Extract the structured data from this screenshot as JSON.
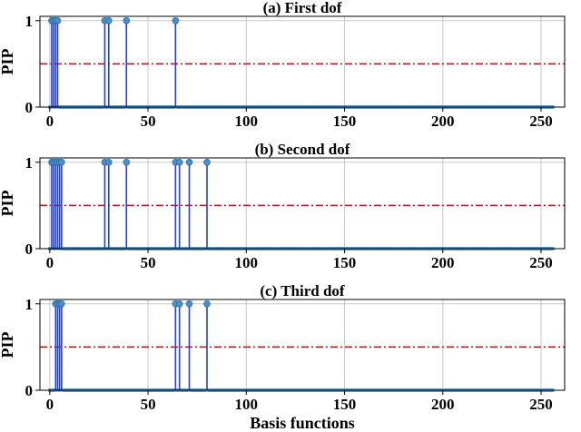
{
  "chart_data": [
    {
      "type": "stem",
      "title": "(a) First dof",
      "ylabel": "PIP",
      "xlabel": "",
      "xlim": [
        -5,
        262
      ],
      "ylim": [
        0,
        1.05
      ],
      "xticks": [
        0,
        50,
        100,
        150,
        200,
        250
      ],
      "yticks": [
        0,
        1
      ],
      "grid": true,
      "threshold": 0.5,
      "n_basis": 257,
      "nonzero_x": [
        1,
        2,
        3,
        4,
        28,
        30,
        39,
        64
      ],
      "nonzero_y": [
        1,
        1,
        1,
        1,
        1,
        1,
        1,
        1
      ]
    },
    {
      "type": "stem",
      "title": "(b) Second dof",
      "ylabel": "PIP",
      "xlabel": "",
      "xlim": [
        -5,
        262
      ],
      "ylim": [
        0,
        1.05
      ],
      "xticks": [
        0,
        50,
        100,
        150,
        200,
        250
      ],
      "yticks": [
        0,
        1
      ],
      "grid": true,
      "threshold": 0.5,
      "n_basis": 257,
      "nonzero_x": [
        1,
        2,
        3,
        4,
        5,
        6,
        28,
        30,
        39,
        64,
        66,
        71,
        80
      ],
      "nonzero_y": [
        1,
        1,
        1,
        1,
        1,
        1,
        1,
        1,
        1,
        1,
        1,
        1,
        1
      ]
    },
    {
      "type": "stem",
      "title": "(c) Third dof",
      "ylabel": "PIP",
      "xlabel": "Basis functions",
      "xlim": [
        -5,
        262
      ],
      "ylim": [
        0,
        1.05
      ],
      "xticks": [
        0,
        50,
        100,
        150,
        200,
        250
      ],
      "yticks": [
        0,
        1
      ],
      "grid": true,
      "threshold": 0.5,
      "n_basis": 257,
      "nonzero_x": [
        3,
        4,
        5,
        6,
        64,
        66,
        71,
        80
      ],
      "nonzero_y": [
        1,
        1,
        1,
        1,
        1,
        1,
        1,
        1
      ]
    }
  ],
  "colors": {
    "stem": "#1f3fd6",
    "marker_fill": "#4a90c8",
    "marker_edge": "#2b6aa0",
    "baseline": "#2b7bb9",
    "threshold": "#e00000",
    "grid": "#c8c8c8",
    "axis": "#000000"
  }
}
